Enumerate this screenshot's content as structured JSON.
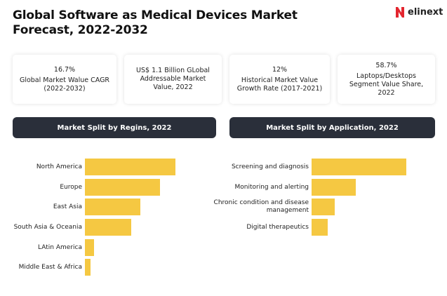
{
  "header": {
    "title": "Global Software as Medical Devices Market Forecast, 2022-2032",
    "logo": "elinext"
  },
  "cards": [
    {
      "value": "16.7%",
      "label": "Global Market Walue CAGR (2022-2032)"
    },
    {
      "label": "US$ 1.1 Billion GLobal Addressable Market Value, 2022"
    },
    {
      "value": "12%",
      "label": "Historical Market Value Growth Rate (2017-2021)"
    },
    {
      "value": "58.7%",
      "label": "Laptops/Desktops Segment Value Share, 2022"
    }
  ],
  "chart_data": [
    {
      "type": "bar",
      "title": "Market Split by Regins, 2022",
      "color": "#f5c842",
      "categories": [
        "North America",
        "Europe",
        "East Asia",
        "South Asia & Oceania",
        "LAtin America",
        "Middle East & Africa"
      ],
      "values": [
        129,
        107,
        79,
        66,
        13,
        8
      ]
    },
    {
      "type": "bar",
      "title": "Market Split by Application, 2022",
      "color": "#f5c842",
      "categories": [
        "Screening and diagnosis",
        "Monitoring and alerting",
        "Chronic condition and disease management",
        "Digital therapeutics"
      ],
      "values": [
        135,
        63,
        33,
        23
      ]
    }
  ]
}
